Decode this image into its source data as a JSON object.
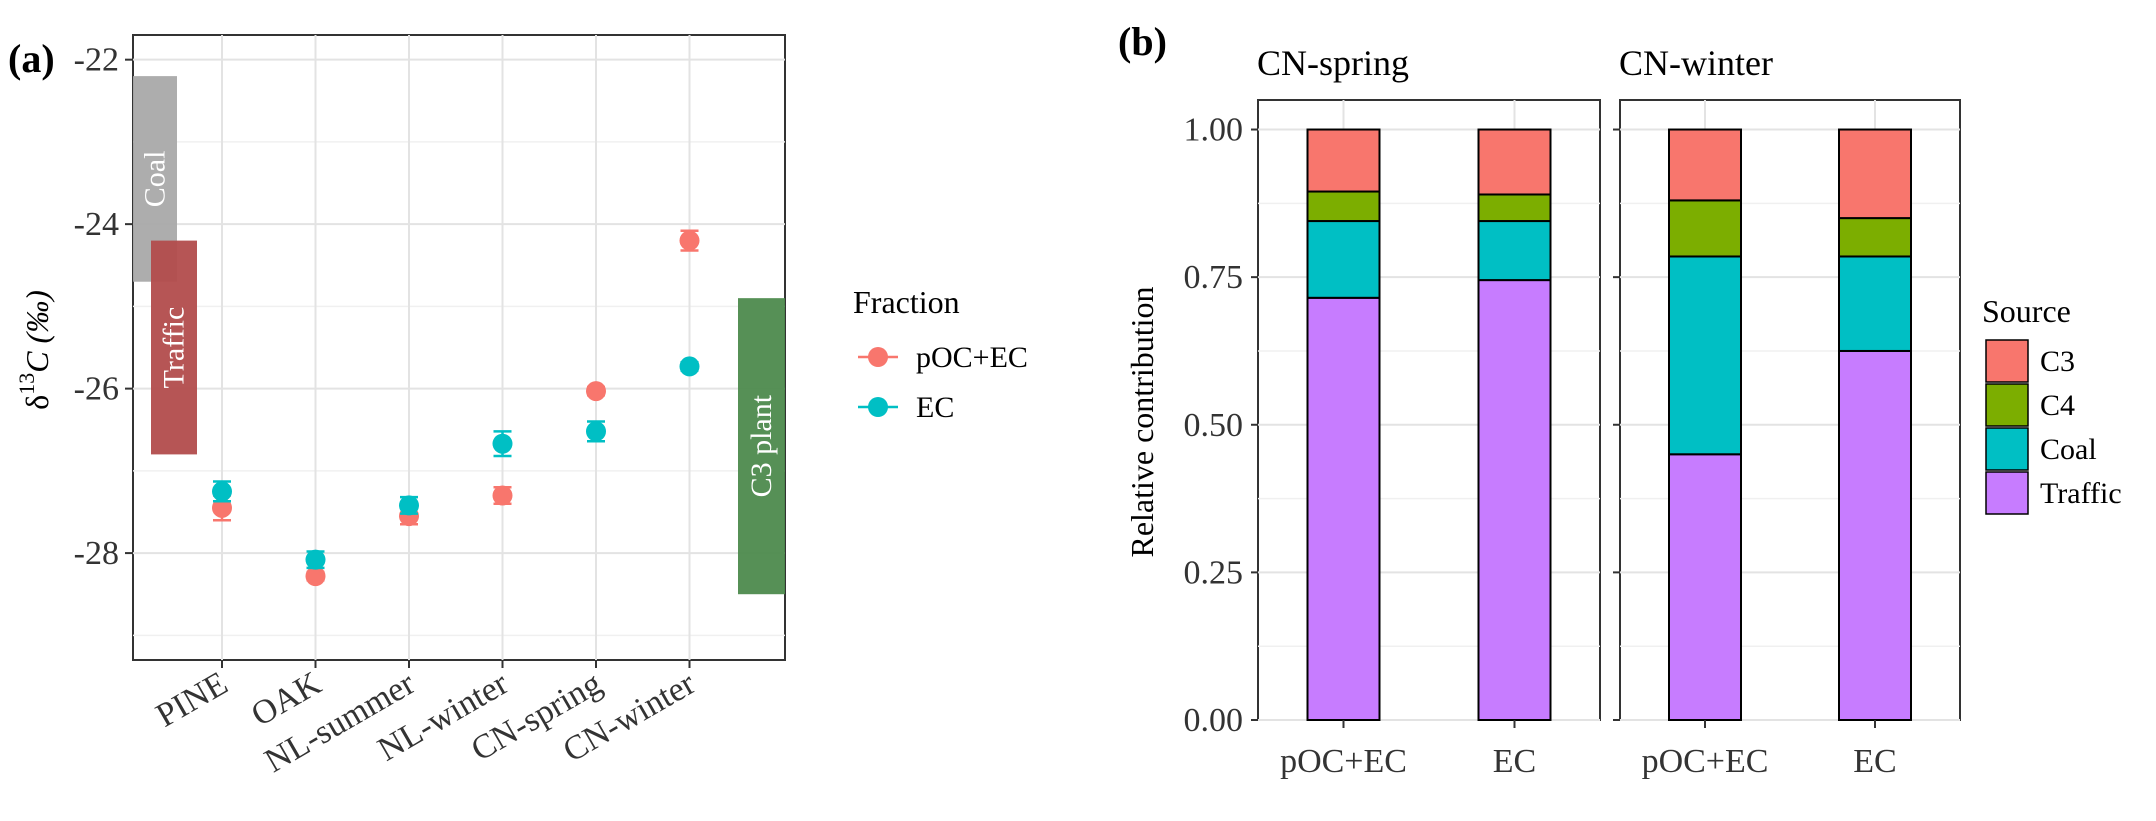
{
  "panels": {
    "a": "(a)",
    "b": "(b)"
  },
  "chart_data": [
    {
      "type": "scatter",
      "panel_label": "(a)",
      "ylabel_prefix": "δ",
      "ylabel_sup": "13",
      "ylabel_suffix": "C (‰)",
      "xlabel": "",
      "categories": [
        "PINE",
        "OAK",
        "NL-summer",
        "NL-winter",
        "CN-spring",
        "CN-winter"
      ],
      "ylim": [
        -29.3,
        -21.7
      ],
      "yticks": [
        -22,
        -24,
        -26,
        -28
      ],
      "grid": true,
      "series": [
        {
          "name": "pOC+EC",
          "color": "#F8766D",
          "values": [
            -27.45,
            -28.28,
            -27.55,
            -27.3,
            -26.03,
            -24.2
          ],
          "err": [
            0.15,
            0.05,
            0.1,
            0.1,
            0.05,
            0.12
          ]
        },
        {
          "name": "EC",
          "color": "#00BFC4",
          "values": [
            -27.25,
            -28.08,
            -27.42,
            -26.67,
            -26.52,
            -25.73
          ],
          "err": [
            0.12,
            0.1,
            0.1,
            0.15,
            0.12,
            0.05
          ]
        }
      ],
      "source_ranges": [
        {
          "name": "Coal",
          "ymin": -24.7,
          "ymax": -22.2,
          "color": "#A9A9A9"
        },
        {
          "name": "Traffic",
          "ymin": -26.8,
          "ymax": -24.2,
          "color": "#B24C4C"
        },
        {
          "name": "C3 plant",
          "ymin": -28.5,
          "ymax": -24.9,
          "color": "#4D8A4D"
        }
      ],
      "legend": {
        "title": "Fraction",
        "placement": "right"
      }
    },
    {
      "type": "bar",
      "stacked": true,
      "panel_label": "(b)",
      "ylabel": "Relative contribution",
      "xlabel": "",
      "ylim": [
        0,
        1.05
      ],
      "yticks": [
        "0.00",
        "0.25",
        "0.50",
        "0.75",
        "1.00"
      ],
      "grid": true,
      "facets": [
        {
          "title": "CN-spring",
          "categories": [
            "pOC+EC",
            "EC"
          ],
          "stacks": [
            {
              "Traffic": 0.715,
              "Coal": 0.13,
              "C4": 0.05,
              "C3": 0.105
            },
            {
              "Traffic": 0.745,
              "Coal": 0.1,
              "C4": 0.045,
              "C3": 0.11
            }
          ]
        },
        {
          "title": "CN-winter",
          "categories": [
            "pOC+EC",
            "EC"
          ],
          "stacks": [
            {
              "Traffic": 0.45,
              "Coal": 0.335,
              "C4": 0.095,
              "C3": 0.12
            },
            {
              "Traffic": 0.625,
              "Coal": 0.16,
              "C4": 0.065,
              "C3": 0.15
            }
          ]
        }
      ],
      "stack_order": [
        "Traffic",
        "Coal",
        "C4",
        "C3"
      ],
      "legend": {
        "title": "Source",
        "placement": "right",
        "entries": [
          {
            "name": "C3",
            "color": "#F8766D"
          },
          {
            "name": "C4",
            "color": "#7CAE00"
          },
          {
            "name": "Coal",
            "color": "#00BFC4"
          },
          {
            "name": "Traffic",
            "color": "#C77CFF"
          }
        ]
      }
    }
  ]
}
